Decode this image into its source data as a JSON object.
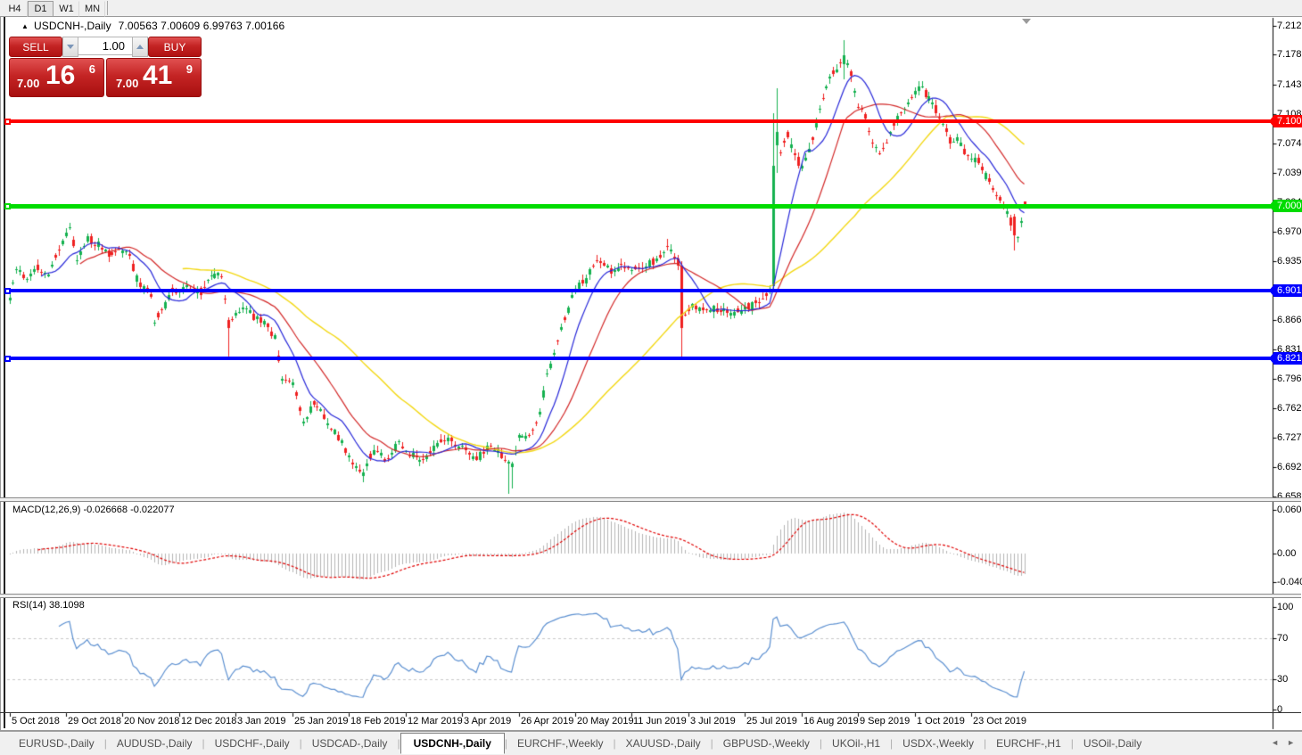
{
  "toolbar": {
    "timeframes": [
      {
        "label": "H4",
        "active": false
      },
      {
        "label": "D1",
        "active": true
      },
      {
        "label": "W1",
        "active": false
      },
      {
        "label": "MN",
        "active": false
      }
    ]
  },
  "chart": {
    "title_arrow": "▲",
    "symbol_period": "USDCNH-,Daily",
    "ohlc_text": "7.00563 7.00609 6.99763 7.00166",
    "macd_label": "MACD(12,26,9) -0.026668 -0.022077",
    "rsi_label": "RSI(14) 38.1098"
  },
  "trade_panel": {
    "sell_label": "SELL",
    "buy_label": "BUY",
    "volume": "1.00",
    "sell_price": {
      "prefix": "7.00",
      "big": "16",
      "sup": "6"
    },
    "buy_price": {
      "prefix": "7.00",
      "big": "41",
      "sup": "9"
    }
  },
  "tabs": {
    "scroll_left": "◄",
    "scroll_right": "►",
    "items": [
      {
        "label": "EURUSD-,Daily",
        "active": false
      },
      {
        "label": "AUDUSD-,Daily",
        "active": false
      },
      {
        "label": "USDCHF-,Daily",
        "active": false
      },
      {
        "label": "USDCAD-,Daily",
        "active": false
      },
      {
        "label": "USDCNH-,Daily",
        "active": true
      },
      {
        "label": "EURCHF-,Weekly",
        "active": false
      },
      {
        "label": "XAUUSD-,Daily",
        "active": false
      },
      {
        "label": "GBPUSD-,Weekly",
        "active": false
      },
      {
        "label": "UKOil-,H1",
        "active": false
      },
      {
        "label": "USDX-,Weekly",
        "active": false
      },
      {
        "label": "EURCHF-,H1",
        "active": false
      },
      {
        "label": "USOil-,Daily",
        "active": false
      }
    ]
  },
  "chart_data": {
    "type": "candlestick-with-indicators",
    "symbol": "USDCNH",
    "timeframe": "Daily",
    "last_bar": {
      "open": 7.00563,
      "high": 7.00609,
      "low": 6.99763,
      "close": 7.00166
    },
    "price_axis_ticks": [
      "7.21290",
      "7.17890",
      "7.14390",
      "7.10890",
      "7.07490",
      "7.03990",
      "7.00490",
      "6.97090",
      "6.93590",
      "6.90190",
      "6.86690",
      "6.83190",
      "6.79690",
      "6.76290",
      "6.72790",
      "6.69290",
      "6.65890"
    ],
    "date_axis_labels": [
      "5 Oct 2018",
      "29 Oct 2018",
      "20 Nov 2018",
      "12 Dec 2018",
      "3 Jan 2019",
      "25 Jan 2019",
      "18 Feb 2019",
      "12 Mar 2019",
      "3 Apr 2019",
      "26 Apr 2019",
      "20 May 2019",
      "11 Jun 2019",
      "3 Jul 2019",
      "25 Jul 2019",
      "16 Aug 2019",
      "9 Sep 2019",
      "1 Oct 2019",
      "23 Oct 2019"
    ],
    "bars_per_label": 16,
    "total_bars": 288,
    "price_anchor_path": [
      [
        0,
        6.893
      ],
      [
        2,
        6.926
      ],
      [
        5,
        6.916
      ],
      [
        8,
        6.928
      ],
      [
        11,
        6.918
      ],
      [
        14,
        6.952
      ],
      [
        16,
        6.968
      ],
      [
        17,
        6.975
      ],
      [
        19,
        6.938
      ],
      [
        22,
        6.962
      ],
      [
        25,
        6.955
      ],
      [
        28,
        6.94
      ],
      [
        31,
        6.952
      ],
      [
        34,
        6.94
      ],
      [
        37,
        6.905
      ],
      [
        40,
        6.898
      ],
      [
        41,
        6.862
      ],
      [
        43,
        6.88
      ],
      [
        46,
        6.9
      ],
      [
        50,
        6.906
      ],
      [
        54,
        6.898
      ],
      [
        57,
        6.922
      ],
      [
        60,
        6.918
      ],
      [
        62,
        6.858
      ],
      [
        64,
        6.876
      ],
      [
        66,
        6.884
      ],
      [
        69,
        6.87
      ],
      [
        72,
        6.862
      ],
      [
        75,
        6.845
      ],
      [
        77,
        6.796
      ],
      [
        80,
        6.79
      ],
      [
        83,
        6.748
      ],
      [
        86,
        6.768
      ],
      [
        90,
        6.748
      ],
      [
        94,
        6.722
      ],
      [
        97,
        6.696
      ],
      [
        100,
        6.686
      ],
      [
        103,
        6.716
      ],
      [
        106,
        6.702
      ],
      [
        110,
        6.722
      ],
      [
        113,
        6.71
      ],
      [
        116,
        6.7
      ],
      [
        120,
        6.718
      ],
      [
        124,
        6.728
      ],
      [
        128,
        6.716
      ],
      [
        132,
        6.706
      ],
      [
        136,
        6.72
      ],
      [
        140,
        6.702
      ],
      [
        142,
        6.694
      ],
      [
        144,
        6.732
      ],
      [
        147,
        6.728
      ],
      [
        150,
        6.758
      ],
      [
        152,
        6.802
      ],
      [
        154,
        6.826
      ],
      [
        156,
        6.856
      ],
      [
        158,
        6.882
      ],
      [
        160,
        6.906
      ],
      [
        163,
        6.916
      ],
      [
        166,
        6.936
      ],
      [
        170,
        6.924
      ],
      [
        173,
        6.931
      ],
      [
        176,
        6.924
      ],
      [
        180,
        6.931
      ],
      [
        184,
        6.939
      ],
      [
        186,
        6.956
      ],
      [
        188,
        6.937
      ],
      [
        189,
        6.934
      ],
      [
        190,
        6.858
      ],
      [
        191,
        6.872
      ],
      [
        193,
        6.882
      ],
      [
        196,
        6.881
      ],
      [
        200,
        6.879
      ],
      [
        204,
        6.877
      ],
      [
        208,
        6.881
      ],
      [
        212,
        6.887
      ],
      [
        215,
        6.902
      ],
      [
        216,
        7.048
      ],
      [
        217,
        7.088
      ],
      [
        218,
        7.062
      ],
      [
        220,
        7.086
      ],
      [
        222,
        7.058
      ],
      [
        224,
        7.046
      ],
      [
        226,
        7.066
      ],
      [
        228,
        7.096
      ],
      [
        230,
        7.128
      ],
      [
        232,
        7.152
      ],
      [
        234,
        7.164
      ],
      [
        236,
        7.178
      ],
      [
        238,
        7.156
      ],
      [
        240,
        7.116
      ],
      [
        242,
        7.106
      ],
      [
        244,
        7.076
      ],
      [
        246,
        7.058
      ],
      [
        248,
        7.076
      ],
      [
        250,
        7.096
      ],
      [
        252,
        7.112
      ],
      [
        254,
        7.126
      ],
      [
        256,
        7.136
      ],
      [
        258,
        7.141
      ],
      [
        260,
        7.126
      ],
      [
        262,
        7.112
      ],
      [
        264,
        7.096
      ],
      [
        266,
        7.076
      ],
      [
        268,
        7.082
      ],
      [
        270,
        7.066
      ],
      [
        272,
        7.06
      ],
      [
        274,
        7.054
      ],
      [
        276,
        7.036
      ],
      [
        278,
        7.022
      ],
      [
        280,
        7.01
      ],
      [
        282,
        6.992
      ],
      [
        284,
        6.968
      ],
      [
        285,
        6.964
      ],
      [
        286,
        6.986
      ],
      [
        287,
        7.00166
      ]
    ],
    "bar_overrides": {
      "62": {
        "low": 6.824
      },
      "100": {
        "low": 6.676
      },
      "141": {
        "low": 6.661
      },
      "142": {
        "low": 6.668
      },
      "186": {
        "high": 6.962
      },
      "190": {
        "open": 6.93,
        "close": 6.858,
        "high": 6.936,
        "low": 6.823
      },
      "216": {
        "open": 6.906,
        "close": 7.048,
        "high": 7.11,
        "low": 6.9
      },
      "217": {
        "open": 7.072,
        "close": 7.088,
        "high": 7.14,
        "low": 7.04
      },
      "236": {
        "open": 7.168,
        "close": 7.178,
        "high": 7.196,
        "low": 7.15
      },
      "284": {
        "open": 6.988,
        "close": 6.966,
        "high": 6.991,
        "low": 6.948
      },
      "287": {
        "open": 7.00563,
        "high": 7.00609,
        "low": 6.99763,
        "close": 7.00166
      }
    },
    "noise": {
      "seed": 11,
      "close_amp": 0.004,
      "open_amp": 0.0035,
      "wick_min": 0.001,
      "wick_max": 0.0065,
      "gap_factor": 0.85
    },
    "colors": {
      "up": "#14b14f",
      "down": "#ef2020",
      "ma_fast": "#2626d8",
      "ma_mid": "#d22727",
      "ma_slow": "#f2d711",
      "macd_hist": "#b5b5b5",
      "macd_signal": "#e00000",
      "rsi": "#5b8fd0",
      "line_red": "#fe0000",
      "line_green": "#00dc00",
      "line_blue": "#0000ff",
      "axis_text": "#000000"
    },
    "moving_averages": [
      {
        "period": 10
      },
      {
        "period": 21
      },
      {
        "period": 50
      }
    ],
    "horizontal_lines": [
      {
        "price": 7.10051,
        "label": "7.10051",
        "color_key": "line_red",
        "thickness": 4
      },
      {
        "price": 7.00089,
        "label": "7.00089",
        "color_key": "line_green",
        "thickness": 5
      },
      {
        "price": 6.901,
        "label": "6.90100",
        "color_key": "line_blue",
        "thickness": 4
      },
      {
        "price": 6.82103,
        "label": "6.82103",
        "color_key": "line_blue",
        "thickness": 4
      }
    ],
    "macd": {
      "fast": 12,
      "slow": 26,
      "signal": 9,
      "axis_ticks": [
        {
          "label": "0.060687",
          "value": 0.060687
        },
        {
          "label": "0.00",
          "value": 0
        },
        {
          "label": "-0.04043",
          "value": -0.04043
        }
      ]
    },
    "rsi": {
      "period": 14,
      "dashed_levels": [
        70,
        30
      ],
      "axis_ticks": [
        {
          "label": "100",
          "value": 100
        },
        {
          "label": "70",
          "value": 70
        },
        {
          "label": "30",
          "value": 30
        },
        {
          "label": "0",
          "value": 0
        }
      ]
    }
  }
}
